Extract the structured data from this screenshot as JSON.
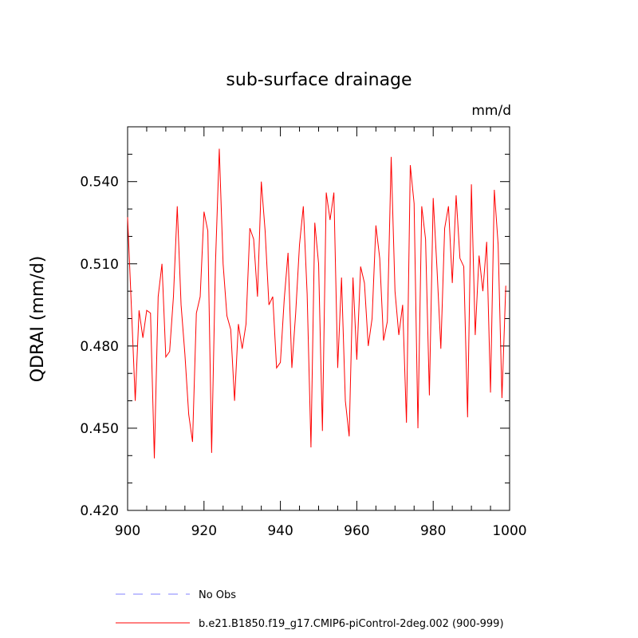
{
  "chart_data": {
    "type": "line",
    "title": "sub-surface drainage",
    "units": "mm/d",
    "ylabel": "QDRAI  (mm/d)",
    "xlabel": "",
    "xlim": [
      900,
      1000
    ],
    "ylim": [
      0.42,
      0.56
    ],
    "x_ticks": [
      900,
      920,
      940,
      960,
      980,
      1000
    ],
    "x_tick_labels": [
      "900",
      "920",
      "940",
      "960",
      "980",
      "1000"
    ],
    "y_ticks": [
      0.42,
      0.45,
      0.48,
      0.51,
      0.54
    ],
    "y_tick_labels": [
      "0.420",
      "0.450",
      "0.480",
      "0.510",
      "0.540"
    ],
    "x_start": 900,
    "series": [
      {
        "name": "b.e21.B1850.f19_g17.CMIP6-piControl-2deg.002 (900-999)",
        "color": "#ff0000",
        "dash": "solid",
        "values": [
          0.527,
          0.494,
          0.46,
          0.493,
          0.483,
          0.493,
          0.492,
          0.439,
          0.498,
          0.51,
          0.476,
          0.478,
          0.498,
          0.531,
          0.495,
          0.477,
          0.455,
          0.445,
          0.492,
          0.498,
          0.529,
          0.522,
          0.441,
          0.51,
          0.552,
          0.51,
          0.491,
          0.486,
          0.46,
          0.488,
          0.479,
          0.488,
          0.523,
          0.519,
          0.498,
          0.54,
          0.522,
          0.495,
          0.498,
          0.472,
          0.474,
          0.497,
          0.514,
          0.472,
          0.492,
          0.517,
          0.531,
          0.499,
          0.443,
          0.525,
          0.51,
          0.449,
          0.536,
          0.526,
          0.536,
          0.472,
          0.505,
          0.46,
          0.447,
          0.505,
          0.475,
          0.509,
          0.503,
          0.48,
          0.49,
          0.524,
          0.512,
          0.482,
          0.489,
          0.549,
          0.5,
          0.484,
          0.495,
          0.452,
          0.546,
          0.532,
          0.45,
          0.531,
          0.519,
          0.462,
          0.534,
          0.508,
          0.479,
          0.523,
          0.531,
          0.503,
          0.535,
          0.512,
          0.509,
          0.454,
          0.539,
          0.484,
          0.513,
          0.5,
          0.518,
          0.463,
          0.537,
          0.517,
          0.461,
          0.502
        ]
      }
    ],
    "legend": [
      {
        "label": "No Obs",
        "color": "#8080ff",
        "dash": "dashed"
      },
      {
        "label": "b.e21.B1850.f19_g17.CMIP6-piControl-2deg.002 (900-999)",
        "color": "#ff0000",
        "dash": "solid"
      }
    ],
    "legend_position": "bottom-left"
  }
}
